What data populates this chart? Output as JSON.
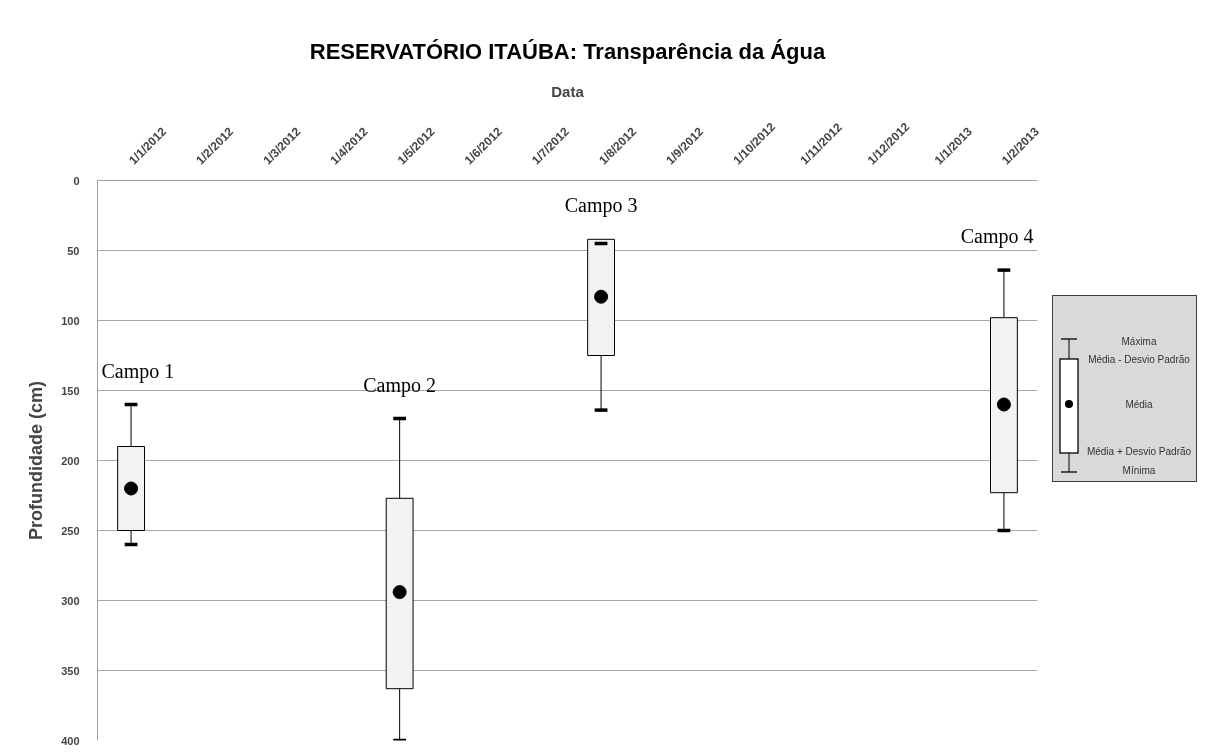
{
  "chart_data": {
    "type": "box",
    "title": "RESERVATÓRIO ITAÚBA: Transparência da Água",
    "xlabel": "Data",
    "ylabel": "Profundidade (cm)",
    "categories": [
      "1/1/2012",
      "1/2/2012",
      "1/3/2012",
      "1/4/2012",
      "1/5/2012",
      "1/6/2012",
      "1/7/2012",
      "1/8/2012",
      "1/9/2012",
      "1/10/2012",
      "1/11/2012",
      "1/12/2012",
      "1/1/2013",
      "1/2/2013"
    ],
    "boxes": [
      {
        "low": 160,
        "q1": 190,
        "q3": 250,
        "high": 260,
        "mean": 220
      },
      null,
      null,
      null,
      {
        "low": 170,
        "q1": 227,
        "q3": 363,
        "high": 400,
        "mean": 294
      },
      null,
      null,
      {
        "low": 45,
        "q1": 42,
        "q3": 125,
        "high": 164,
        "mean": 83
      },
      null,
      null,
      null,
      null,
      null,
      {
        "low": 64,
        "q1": 98,
        "q3": 223,
        "high": 250,
        "mean": 160
      }
    ],
    "color": "#f2f2f2",
    "ylim": [
      400,
      0
    ],
    "yticks": [
      0,
      50,
      100,
      150,
      200,
      250,
      300,
      350,
      400
    ],
    "grid": "y",
    "annotations": [
      "Campo 1",
      "Campo 2",
      "Campo 3",
      "Campo 4",
      "Máxima",
      "Média - Desvio Padrão",
      "Média",
      "Média + Desvio Padrão",
      "Mínima"
    ]
  }
}
